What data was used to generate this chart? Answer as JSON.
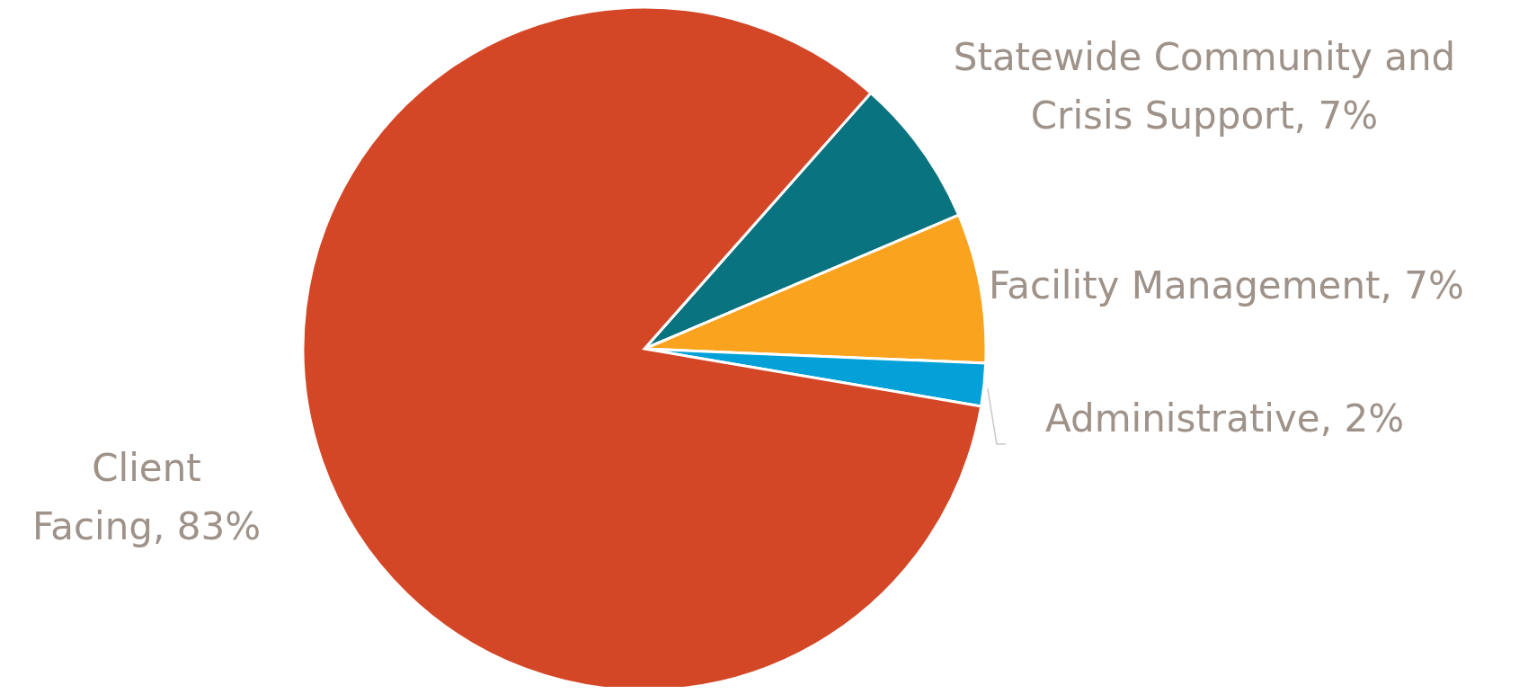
{
  "chart_data": {
    "type": "pie",
    "categories": [
      "Statewide Community and Crisis Support",
      "Facility Management",
      "Administrative",
      "Client Facing"
    ],
    "values": [
      7,
      7,
      2,
      83
    ],
    "value_labels": [
      "7%",
      "7%",
      "2%",
      "83%"
    ],
    "colors": [
      "#0a7380",
      "#f9a31e",
      "#04a0d8",
      "#d34727"
    ],
    "legend": false
  }
}
